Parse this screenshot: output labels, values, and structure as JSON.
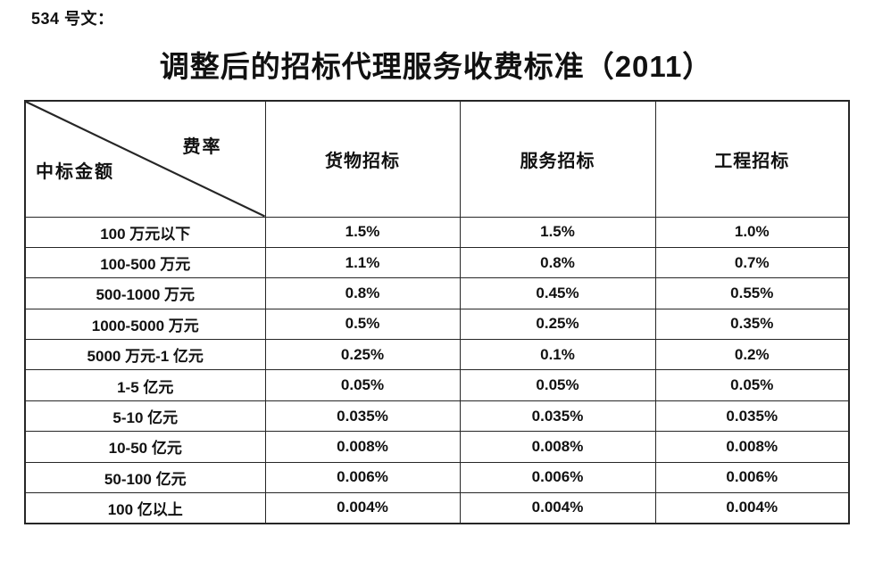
{
  "doc": {
    "ref_label": "534 号文：",
    "title": "调整后的招标代理服务收费标准（2011）"
  },
  "table": {
    "corner": {
      "top_right": "费率",
      "bottom_left": "中标金额"
    },
    "columns": [
      "货物招标",
      "服务招标",
      "工程招标"
    ],
    "rows": [
      {
        "label": "100 万元以下",
        "values": [
          "1.5%",
          "1.5%",
          "1.0%"
        ]
      },
      {
        "label": "100-500 万元",
        "values": [
          "1.1%",
          "0.8%",
          "0.7%"
        ]
      },
      {
        "label": "500-1000 万元",
        "values": [
          "0.8%",
          "0.45%",
          "0.55%"
        ]
      },
      {
        "label": "1000-5000 万元",
        "values": [
          "0.5%",
          "0.25%",
          "0.35%"
        ]
      },
      {
        "label": "5000 万元-1 亿元",
        "values": [
          "0.25%",
          "0.1%",
          "0.2%"
        ]
      },
      {
        "label": "1-5 亿元",
        "values": [
          "0.05%",
          "0.05%",
          "0.05%"
        ]
      },
      {
        "label": "5-10 亿元",
        "values": [
          "0.035%",
          "0.035%",
          "0.035%"
        ]
      },
      {
        "label": "10-50 亿元",
        "values": [
          "0.008%",
          "0.008%",
          "0.008%"
        ]
      },
      {
        "label": "50-100 亿元",
        "values": [
          "0.006%",
          "0.006%",
          "0.006%"
        ]
      },
      {
        "label": "100 亿以上",
        "values": [
          "0.004%",
          "0.004%",
          "0.004%"
        ]
      }
    ]
  },
  "colors": {
    "text": "#111111",
    "border": "#262626",
    "background": "#ffffff"
  }
}
